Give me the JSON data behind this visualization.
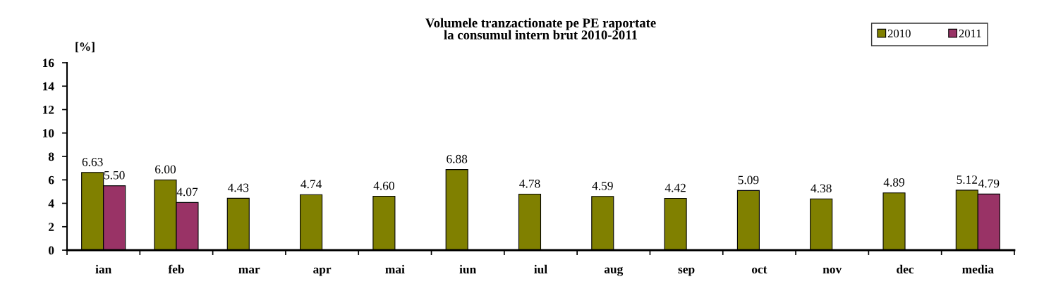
{
  "chart_data": {
    "type": "bar",
    "title": "Volumele tranzactionate pe PE raportate\nla consumul intern brut 2010-2011",
    "ylabel": "[%]",
    "categories": [
      "ian",
      "feb",
      "mar",
      "apr",
      "mai",
      "iun",
      "iul",
      "aug",
      "sep",
      "oct",
      "nov",
      "dec",
      "media"
    ],
    "series": [
      {
        "name": "2010",
        "color": "#808000",
        "values": [
          6.63,
          6.0,
          4.43,
          4.74,
          4.6,
          6.88,
          4.78,
          4.59,
          4.42,
          5.09,
          4.38,
          4.89,
          5.12
        ],
        "value_labels": [
          "6.63",
          "6.00",
          "4.43",
          "4.74",
          "4.60",
          "6.88",
          "4.78",
          "4.59",
          "4.42",
          "5.09",
          "4.38",
          "4.89",
          "5.12"
        ]
      },
      {
        "name": "2011",
        "color": "#993366",
        "values": [
          5.5,
          4.07,
          null,
          null,
          null,
          null,
          null,
          null,
          null,
          null,
          null,
          null,
          4.79
        ],
        "value_labels": [
          "5.50",
          "4.07",
          null,
          null,
          null,
          null,
          null,
          null,
          null,
          null,
          null,
          null,
          "4.79"
        ]
      }
    ],
    "ylim": [
      0,
      16
    ],
    "yticks": [
      0,
      2,
      4,
      6,
      8,
      10,
      12,
      14,
      16
    ],
    "legend": "top right"
  }
}
